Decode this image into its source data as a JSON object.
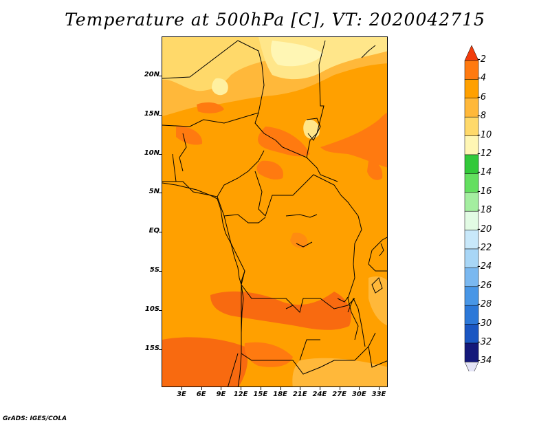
{
  "title": "Temperature at 500hPa [C], VT: 2020042715",
  "credit": "GrADS: IGES/COLA",
  "map": {
    "lat_labels": [
      "20N",
      "15N",
      "10N",
      "5N",
      "EQ",
      "5S",
      "10S",
      "15S"
    ],
    "lon_labels": [
      "3E",
      "6E",
      "9E",
      "12E",
      "15E",
      "18E",
      "21E",
      "24E",
      "27E",
      "30E",
      "33E"
    ],
    "dominant_fill_color": "#ffa000",
    "regions": [
      {
        "name": "sahara-north",
        "color": "#ffc84a"
      },
      {
        "name": "sahara-pale",
        "color": "#ffe68a"
      },
      {
        "name": "sahel-hot",
        "color": "#ff7a10"
      },
      {
        "name": "southern-hot",
        "color": "#f86a10"
      }
    ]
  },
  "colorbar": {
    "labels": [
      "-2",
      "-4",
      "-6",
      "-8",
      "-10",
      "-12",
      "-14",
      "-16",
      "-18",
      "-20",
      "-22",
      "-24",
      "-26",
      "-28",
      "-30",
      "-32",
      "-34"
    ],
    "colors": [
      "#f23c0c",
      "#ff7a10",
      "#ffa000",
      "#ffb83a",
      "#ffd96a",
      "#fff6b4",
      "#32c93a",
      "#64df60",
      "#a4eea0",
      "#e2fbe4",
      "#c8e8fa",
      "#a8d6f6",
      "#7ab8f0",
      "#4896e6",
      "#2c78d8",
      "#1a56c2",
      "#14187a",
      "#e4e4f6"
    ]
  }
}
